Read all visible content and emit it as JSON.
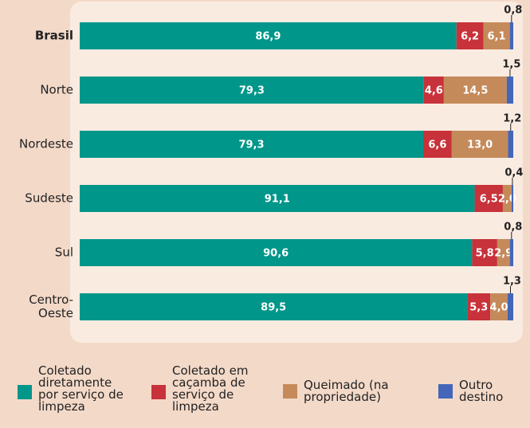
{
  "chart_data": {
    "type": "stacked-bar-horizontal",
    "categories": [
      "Brasil",
      "Norte",
      "Nordeste",
      "Sudeste",
      "Sul",
      "Centro-Oeste"
    ],
    "series": [
      {
        "name": "Coletado diretamente por serviço de limpeza",
        "color": "#00968a",
        "values": [
          86.9,
          79.3,
          79.3,
          91.1,
          90.6,
          89.5
        ],
        "value_labels": [
          "86,9",
          "79,3",
          "79,3",
          "91,1",
          "90,6",
          "89,5"
        ]
      },
      {
        "name": "Coletado em caçamba de serviço de limpeza",
        "color": "#c8323a",
        "values": [
          6.2,
          4.6,
          6.6,
          6.5,
          5.8,
          5.3
        ],
        "value_labels": [
          "6,2",
          "4,6",
          "6,6",
          "6,5",
          "5,8",
          "5,3"
        ]
      },
      {
        "name": "Queimado (na propriedade)",
        "color": "#c58a5a",
        "values": [
          6.1,
          14.5,
          13.0,
          2.0,
          2.9,
          4.0
        ],
        "value_labels": [
          "6,1",
          "14,5",
          "13,0",
          "2,0",
          "2,9",
          "4,0"
        ]
      },
      {
        "name": "Outro destino",
        "color": "#4466b8",
        "values": [
          0.8,
          1.5,
          1.2,
          0.4,
          0.8,
          1.3
        ],
        "value_labels": [
          "0,8",
          "1,5",
          "1,2",
          "0,4",
          "0,8",
          "1,3"
        ]
      }
    ]
  }
}
